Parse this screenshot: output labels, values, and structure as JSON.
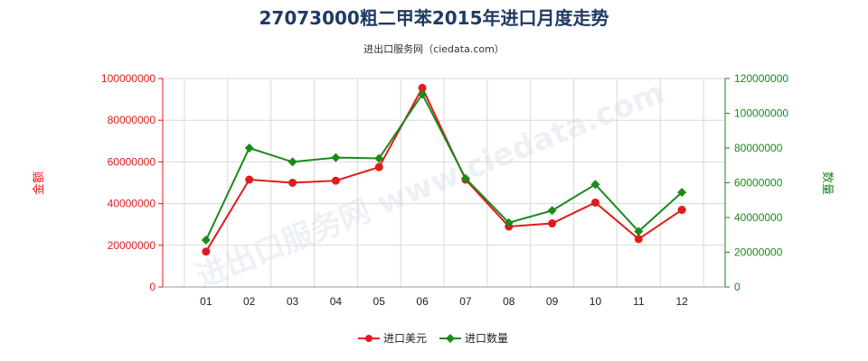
{
  "chart_data": {
    "type": "line",
    "title": "27073000粗二甲苯2015年进口月度走势",
    "subtitle": "进出口服务网（ciedata.com）",
    "watermark": "进出口服务网 www.ciedata.com",
    "categories": [
      "01",
      "02",
      "03",
      "04",
      "05",
      "06",
      "07",
      "08",
      "09",
      "10",
      "11",
      "12"
    ],
    "y_left": {
      "label": "金额",
      "ticks": [
        "0",
        "20000000",
        "40000000",
        "60000000",
        "80000000",
        "100000000"
      ],
      "min": 0,
      "max": 100000000
    },
    "y_right": {
      "label": "数量",
      "ticks": [
        "0",
        "20000000",
        "40000000",
        "60000000",
        "80000000",
        "100000000",
        "120000000"
      ],
      "min": 0,
      "max": 120000000
    },
    "series": [
      {
        "name": "进口美元",
        "axis": "left",
        "color": "#e31a1c",
        "marker": "circle",
        "values": [
          17000000,
          51500000,
          50000000,
          51000000,
          57500000,
          95500000,
          51500000,
          29000000,
          30500000,
          40500000,
          23000000,
          37000000
        ]
      },
      {
        "name": "进口数量",
        "axis": "right",
        "color": "#1a8a1a",
        "marker": "diamond",
        "values": [
          27000000,
          80000000,
          72000000,
          74500000,
          74000000,
          111000000,
          62500000,
          37000000,
          44000000,
          59000000,
          32000000,
          54500000
        ]
      }
    ],
    "grid": true,
    "legend_position": "bottom-center"
  }
}
